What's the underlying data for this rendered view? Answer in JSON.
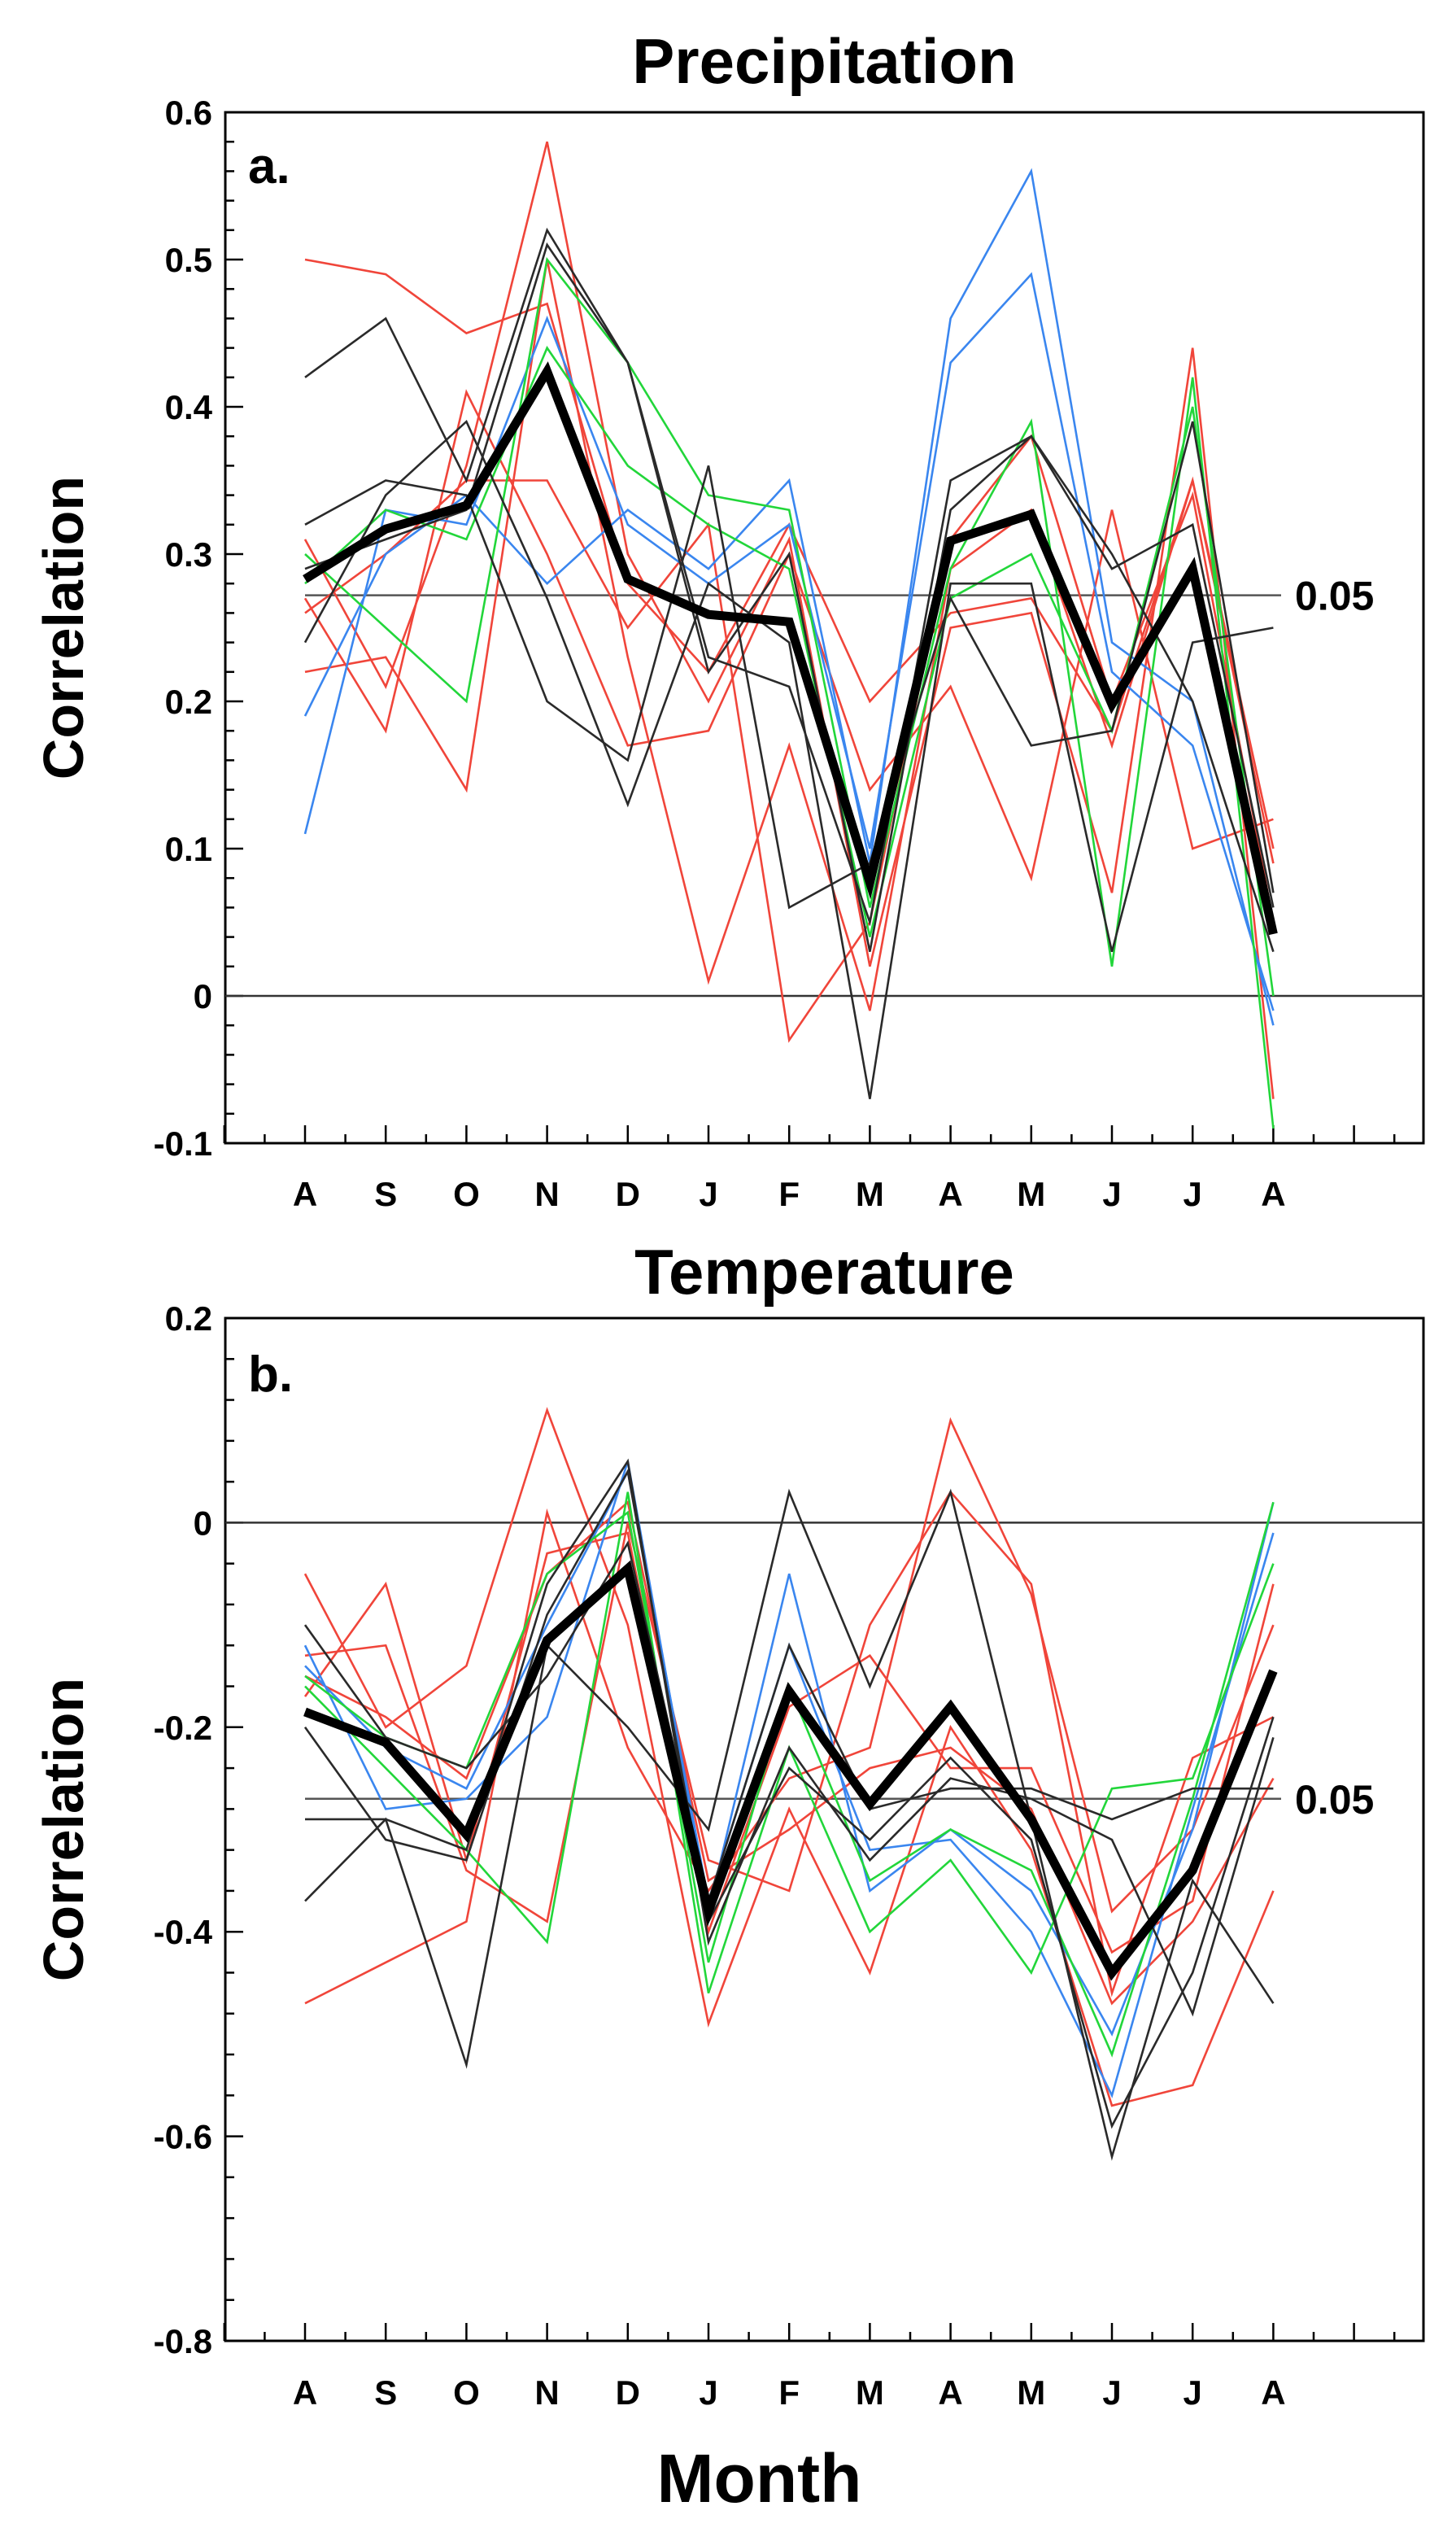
{
  "chart_data": [
    {
      "type": "line",
      "panel_label": "a.",
      "title": "Precipitation",
      "xlabel": "",
      "ylabel": "Correlation",
      "categories": [
        "A",
        "S",
        "O",
        "N",
        "D",
        "J",
        "F",
        "M",
        "A",
        "M",
        "J",
        "J",
        "A"
      ],
      "ylim": [
        -0.1,
        0.6
      ],
      "yticks": [
        -0.1,
        0,
        0.1,
        0.2,
        0.3,
        0.4,
        0.5,
        0.6
      ],
      "ytick_labels": [
        "-0.1",
        "0",
        "0.1",
        "0.2",
        "0.3",
        "0.4",
        "0.5",
        "0.6"
      ],
      "significance": {
        "value": 0.272,
        "label": "0.05"
      },
      "zero_line": 0,
      "mean_series": {
        "name": "mean",
        "color": "#000000",
        "values": [
          0.283,
          0.317,
          0.333,
          0.424,
          0.283,
          0.259,
          0.254,
          0.077,
          0.309,
          0.327,
          0.198,
          0.29,
          0.042
        ]
      },
      "series": [
        {
          "name": "red-1",
          "color": "#f0453a",
          "values": [
            0.5,
            0.49,
            0.45,
            0.47,
            0.28,
            0.22,
            0.32,
            0.2,
            0.26,
            0.27,
            0.18,
            0.35,
            0.1
          ]
        },
        {
          "name": "red-2",
          "color": "#f0453a",
          "values": [
            0.31,
            0.21,
            0.36,
            0.58,
            0.3,
            0.2,
            0.31,
            0.02,
            0.25,
            0.26,
            0.07,
            0.44,
            -0.07
          ]
        },
        {
          "name": "red-3",
          "color": "#f0453a",
          "values": [
            0.27,
            0.18,
            0.41,
            0.3,
            0.17,
            0.18,
            0.3,
            0.14,
            0.21,
            0.08,
            0.33,
            0.1,
            0.12
          ]
        },
        {
          "name": "red-4",
          "color": "#f0453a",
          "values": [
            0.22,
            0.23,
            0.14,
            0.5,
            0.23,
            0.01,
            0.17,
            -0.01,
            0.29,
            0.33,
            0.17,
            0.35,
            0.09
          ]
        },
        {
          "name": "red-5",
          "color": "#f0453a",
          "values": [
            0.26,
            0.3,
            0.35,
            0.35,
            0.25,
            0.32,
            -0.03,
            0.05,
            0.31,
            0.38,
            0.2,
            0.34,
            0.05
          ]
        },
        {
          "name": "blue-1",
          "color": "#3a86ef",
          "values": [
            0.19,
            0.3,
            0.34,
            0.28,
            0.33,
            0.29,
            0.35,
            0.09,
            0.46,
            0.56,
            0.24,
            0.2,
            -0.02
          ]
        },
        {
          "name": "blue-2",
          "color": "#3a86ef",
          "values": [
            0.11,
            0.33,
            0.32,
            0.46,
            0.32,
            0.28,
            0.32,
            0.1,
            0.43,
            0.49,
            0.22,
            0.17,
            -0.01
          ]
        },
        {
          "name": "green-1",
          "color": "#22d63a",
          "values": [
            0.3,
            0.25,
            0.2,
            0.5,
            0.43,
            0.34,
            0.33,
            0.06,
            0.29,
            0.39,
            0.02,
            0.42,
            -0.09
          ]
        },
        {
          "name": "green-2",
          "color": "#22d63a",
          "values": [
            0.28,
            0.33,
            0.31,
            0.44,
            0.36,
            0.32,
            0.29,
            0.04,
            0.27,
            0.3,
            0.18,
            0.4,
            0.0
          ]
        },
        {
          "name": "black-1",
          "color": "#2a2a2a",
          "values": [
            0.42,
            0.46,
            0.35,
            0.52,
            0.43,
            0.23,
            0.21,
            0.05,
            0.35,
            0.38,
            0.29,
            0.32,
            0.06
          ]
        },
        {
          "name": "black-2",
          "color": "#2a2a2a",
          "values": [
            0.32,
            0.35,
            0.34,
            0.2,
            0.16,
            0.36,
            0.06,
            0.09,
            0.27,
            0.17,
            0.18,
            0.39,
            0.07
          ]
        },
        {
          "name": "black-3",
          "color": "#2a2a2a",
          "values": [
            0.24,
            0.34,
            0.39,
            0.27,
            0.13,
            0.28,
            0.24,
            -0.07,
            0.28,
            0.28,
            0.03,
            0.24,
            0.25
          ]
        },
        {
          "name": "black-4",
          "color": "#2a2a2a",
          "values": [
            0.29,
            0.31,
            0.33,
            0.51,
            0.43,
            0.22,
            0.3,
            0.03,
            0.33,
            0.38,
            0.3,
            0.2,
            0.03
          ]
        }
      ]
    },
    {
      "type": "line",
      "panel_label": "b.",
      "title": "Temperature",
      "xlabel": "Month",
      "ylabel": "Correlation",
      "categories": [
        "A",
        "S",
        "O",
        "N",
        "D",
        "J",
        "F",
        "M",
        "A",
        "M",
        "J",
        "J",
        "A"
      ],
      "ylim": [
        -0.8,
        0.2
      ],
      "yticks": [
        -0.8,
        -0.6,
        -0.4,
        -0.2,
        0,
        0.2
      ],
      "ytick_labels": [
        "-0.8",
        "-0.6",
        "-0.4",
        "-0.2",
        "0",
        "0.2"
      ],
      "significance": {
        "value": -0.27,
        "label": "0.05"
      },
      "zero_line": 0,
      "mean_series": {
        "name": "mean",
        "color": "#000000",
        "values": [
          -0.185,
          -0.215,
          -0.305,
          -0.115,
          -0.045,
          -0.38,
          -0.165,
          -0.275,
          -0.18,
          -0.29,
          -0.44,
          -0.34,
          -0.145
        ]
      },
      "series": [
        {
          "name": "red-1",
          "color": "#f0453a",
          "values": [
            -0.05,
            -0.2,
            -0.14,
            0.11,
            -0.1,
            -0.49,
            -0.28,
            -0.44,
            -0.2,
            -0.32,
            -0.57,
            -0.55,
            -0.36
          ]
        },
        {
          "name": "red-2",
          "color": "#f0453a",
          "values": [
            -0.47,
            -0.43,
            -0.39,
            0.01,
            -0.22,
            -0.36,
            -0.25,
            -0.22,
            0.1,
            -0.07,
            -0.38,
            -0.3,
            -0.1
          ]
        },
        {
          "name": "red-3",
          "color": "#f0453a",
          "values": [
            -0.13,
            -0.12,
            -0.34,
            -0.39,
            0.0,
            -0.33,
            -0.36,
            -0.1,
            0.03,
            -0.06,
            -0.46,
            -0.23,
            -0.19
          ]
        },
        {
          "name": "red-4",
          "color": "#f0453a",
          "values": [
            -0.17,
            -0.06,
            -0.33,
            -0.03,
            -0.01,
            -0.4,
            -0.18,
            -0.13,
            -0.24,
            -0.24,
            -0.42,
            -0.37,
            -0.06
          ]
        },
        {
          "name": "red-5",
          "color": "#f0453a",
          "values": [
            -0.15,
            -0.19,
            -0.25,
            -0.05,
            0.02,
            -0.35,
            -0.3,
            -0.24,
            -0.22,
            -0.28,
            -0.47,
            -0.39,
            -0.25
          ]
        },
        {
          "name": "blue-1",
          "color": "#3a86ef",
          "values": [
            -0.12,
            -0.28,
            -0.27,
            -0.19,
            0.06,
            -0.38,
            -0.05,
            -0.36,
            -0.3,
            -0.36,
            -0.5,
            -0.3,
            0.02
          ]
        },
        {
          "name": "blue-2",
          "color": "#3a86ef",
          "values": [
            -0.14,
            -0.22,
            -0.26,
            -0.1,
            0.05,
            -0.37,
            -0.12,
            -0.32,
            -0.31,
            -0.4,
            -0.56,
            -0.28,
            -0.01
          ]
        },
        {
          "name": "green-1",
          "color": "#22d63a",
          "values": [
            -0.16,
            -0.24,
            -0.32,
            -0.41,
            0.03,
            -0.46,
            -0.22,
            -0.4,
            -0.33,
            -0.44,
            -0.26,
            -0.25,
            -0.04
          ]
        },
        {
          "name": "green-2",
          "color": "#22d63a",
          "values": [
            -0.15,
            -0.21,
            -0.24,
            -0.05,
            0.01,
            -0.43,
            -0.16,
            -0.35,
            -0.3,
            -0.34,
            -0.52,
            -0.27,
            0.02
          ]
        },
        {
          "name": "black-1",
          "color": "#2a2a2a",
          "values": [
            -0.37,
            -0.29,
            -0.53,
            -0.12,
            -0.2,
            -0.3,
            0.03,
            -0.16,
            0.03,
            -0.29,
            -0.62,
            -0.35,
            -0.47
          ]
        },
        {
          "name": "black-2",
          "color": "#2a2a2a",
          "values": [
            -0.29,
            -0.29,
            -0.32,
            -0.06,
            0.06,
            -0.41,
            -0.22,
            -0.33,
            -0.25,
            -0.27,
            -0.31,
            -0.48,
            -0.21
          ]
        },
        {
          "name": "black-3",
          "color": "#2a2a2a",
          "values": [
            -0.1,
            -0.21,
            -0.24,
            -0.15,
            -0.02,
            -0.37,
            -0.12,
            -0.28,
            -0.26,
            -0.26,
            -0.29,
            -0.26,
            -0.26
          ]
        },
        {
          "name": "black-4",
          "color": "#2a2a2a",
          "values": [
            -0.2,
            -0.31,
            -0.33,
            -0.09,
            0.05,
            -0.39,
            -0.24,
            -0.31,
            -0.23,
            -0.31,
            -0.59,
            -0.44,
            -0.19
          ]
        }
      ]
    }
  ]
}
